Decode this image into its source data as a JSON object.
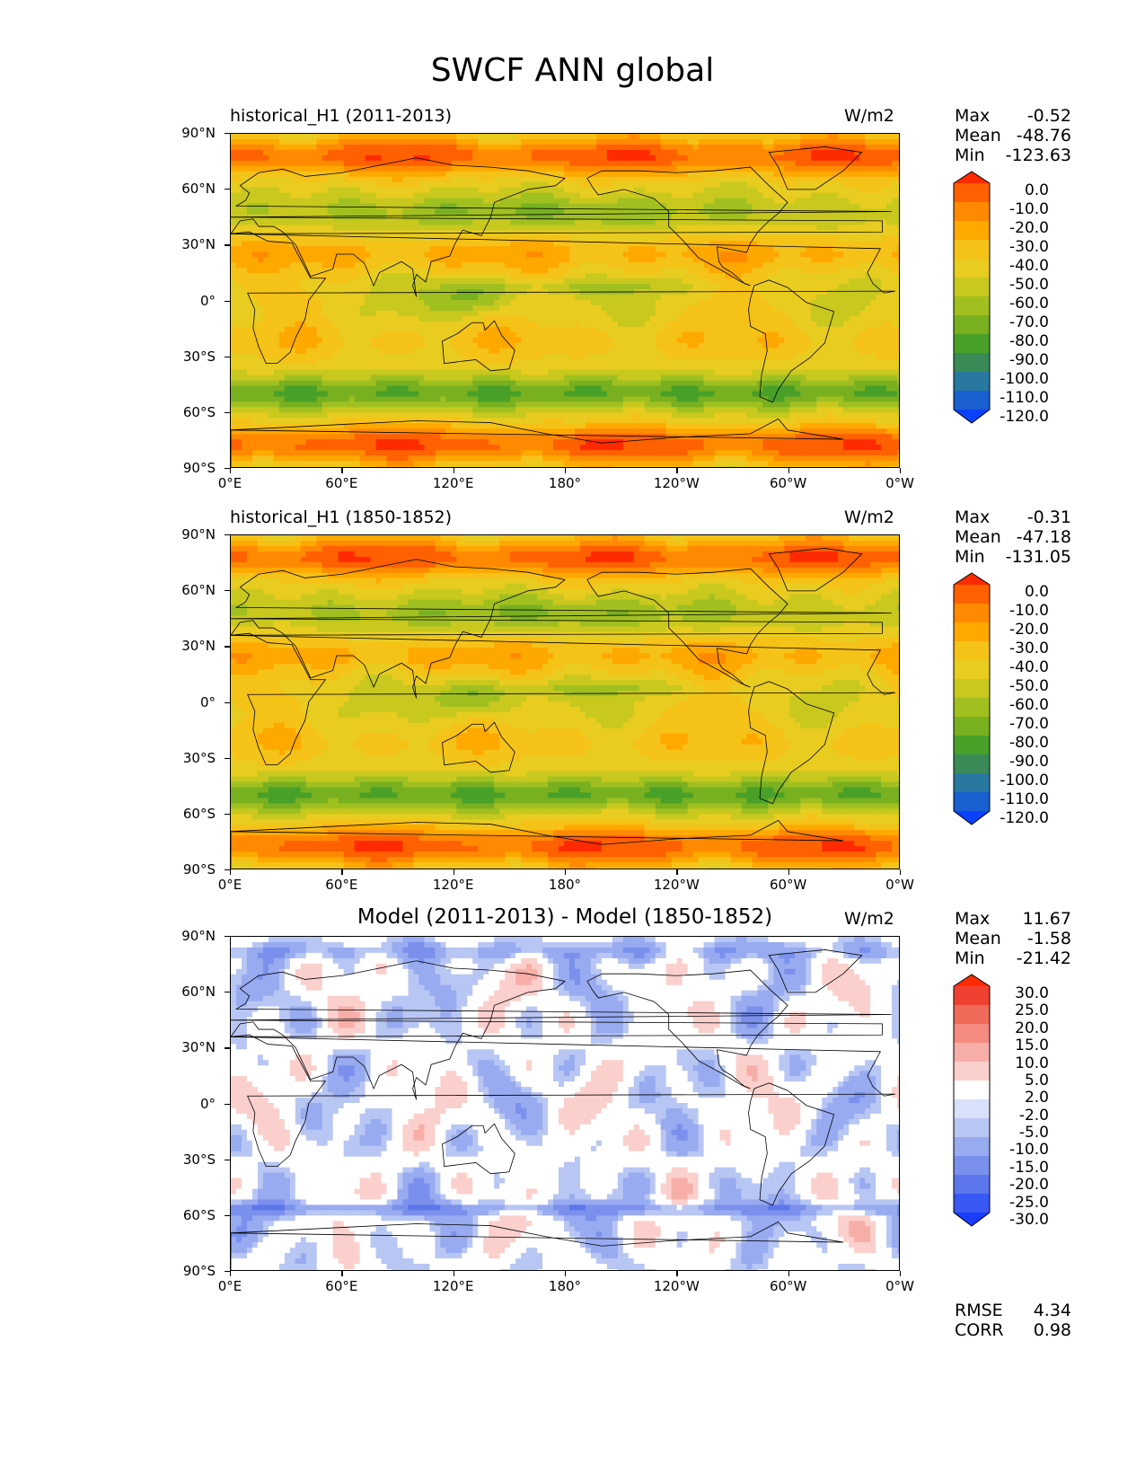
{
  "title": "SWCF ANN global",
  "units": "W/m2",
  "lat_ticks": [
    "90°N",
    "60°N",
    "30°N",
    "0°",
    "30°S",
    "60°S",
    "90°S"
  ],
  "lon_ticks": [
    "0°E",
    "60°E",
    "120°E",
    "180°",
    "120°W",
    "60°W",
    "0°W"
  ],
  "panels": [
    {
      "title": "historical_H1 (2011-2013)",
      "title_style": "left",
      "kind": "field",
      "stats": {
        "max_label": "Max",
        "max": "-0.52",
        "mean_label": "Mean",
        "mean": "-48.76",
        "min_label": "Min",
        "min": "-123.63"
      },
      "colorbar_labels": [
        "0.0",
        "-10.0",
        "-20.0",
        "-30.0",
        "-40.0",
        "-50.0",
        "-60.0",
        "-70.0",
        "-80.0",
        "-90.0",
        "-100.0",
        "-110.0",
        "-120.0"
      ]
    },
    {
      "title": "historical_H1 (1850-1852)",
      "title_style": "left",
      "kind": "field",
      "stats": {
        "max_label": "Max",
        "max": "-0.31",
        "mean_label": "Mean",
        "mean": "-47.18",
        "min_label": "Min",
        "min": "-131.05"
      },
      "colorbar_labels": [
        "0.0",
        "-10.0",
        "-20.0",
        "-30.0",
        "-40.0",
        "-50.0",
        "-60.0",
        "-70.0",
        "-80.0",
        "-90.0",
        "-100.0",
        "-110.0",
        "-120.0"
      ]
    },
    {
      "title": "Model (2011-2013) - Model (1850-1852)",
      "title_style": "center",
      "kind": "diff",
      "stats": {
        "max_label": "Max",
        "max": "11.67",
        "mean_label": "Mean",
        "mean": "-1.58",
        "min_label": "Min",
        "min": "-21.42"
      },
      "colorbar_labels": [
        "30.0",
        "25.0",
        "20.0",
        "15.0",
        "10.0",
        "5.0",
        "2.0",
        "-2.0",
        "-5.0",
        "-10.0",
        "-15.0",
        "-20.0",
        "-25.0",
        "-30.0"
      ]
    }
  ],
  "metrics": {
    "rmse_label": "RMSE",
    "rmse": "4.34",
    "corr_label": "CORR",
    "corr": "0.98"
  },
  "colors": {
    "field_scale": [
      "#ff2a00",
      "#ff6000",
      "#ff8a00",
      "#ffa800",
      "#f5c218",
      "#e8cc20",
      "#c8c81e",
      "#a0c020",
      "#78b020",
      "#48a028",
      "#3a8a58",
      "#2878a0",
      "#1a60d0",
      "#0a40ff"
    ],
    "diff_scale": [
      "#ff2a00",
      "#f04030",
      "#f06a5a",
      "#f48a80",
      "#f8aea8",
      "#fbd0cc",
      "#ffffff",
      "#d8e0fa",
      "#b8c6f4",
      "#98aaf0",
      "#7a90ec",
      "#5c76ec",
      "#3a58f4",
      "#1a3cff"
    ]
  }
}
